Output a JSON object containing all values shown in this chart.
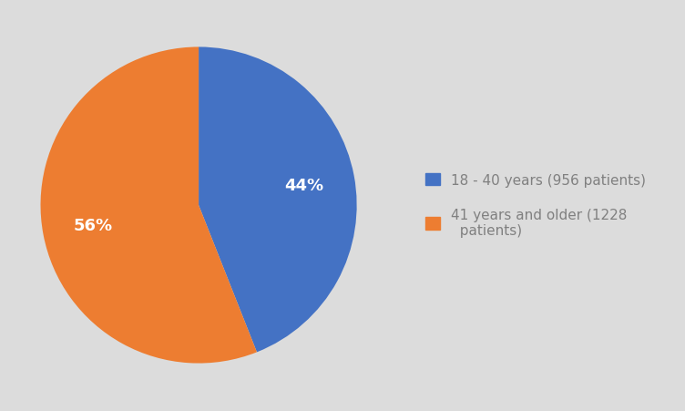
{
  "values": [
    44,
    56
  ],
  "colors": [
    "#4472C4",
    "#ED7D31"
  ],
  "labels": [
    "18 - 40 years (956 patients)",
    "41 years and older (1228\n  patients)"
  ],
  "autopct_labels": [
    "44%",
    "56%"
  ],
  "background_color": "#DCDCDC",
  "text_color": "#FFFFFF",
  "legend_text_color": "#808080",
  "startangle": 90,
  "legend_fontsize": 11,
  "autopct_fontsize": 13,
  "pctdistance": 0.68
}
